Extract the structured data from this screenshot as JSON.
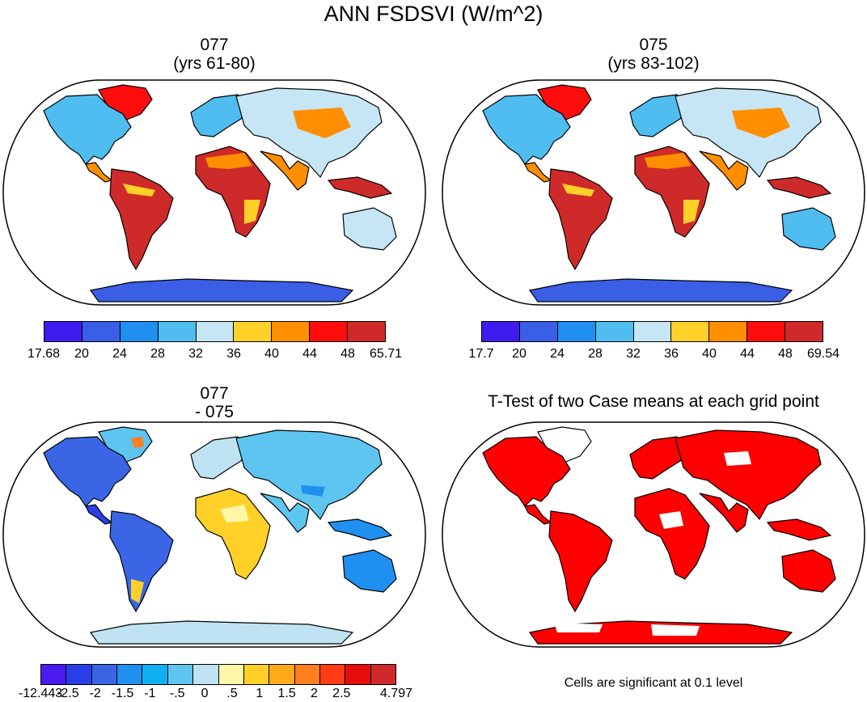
{
  "title": "ANN FSDSVI (W/m^2)",
  "panels": [
    {
      "id": "case1",
      "title_line1": "077",
      "title_line2": "(yrs 61-80)",
      "colors": [
        "#3f1bf0",
        "#3a5ee6",
        "#1f8ff0",
        "#4fbdf0",
        "#c6e6f5",
        "#ffd128",
        "#ff8f00",
        "#ff0d0d",
        "#cf2a2a"
      ],
      "tick_labels": [
        "17.68",
        "20",
        "24",
        "28",
        "32",
        "36",
        "40",
        "44",
        "48",
        "65.71"
      ]
    },
    {
      "id": "case2",
      "title_line1": "075",
      "title_line2": "(yrs 83-102)",
      "colors": [
        "#3f1bf0",
        "#3a5ee6",
        "#1f8ff0",
        "#4fbdf0",
        "#c6e6f5",
        "#ffd128",
        "#ff8f00",
        "#ff0d0d",
        "#cf2a2a"
      ],
      "tick_labels": [
        "17.7",
        "20",
        "24",
        "28",
        "32",
        "36",
        "40",
        "44",
        "48",
        "69.54"
      ]
    },
    {
      "id": "diff",
      "title_line1": "077",
      "title_line2": "- 075",
      "colors": [
        "#4a1cf0",
        "#2a3ee8",
        "#3a66e6",
        "#1f8ff0",
        "#0fb0f0",
        "#5ec4f0",
        "#bfe3f2",
        "#fff7a8",
        "#ffd128",
        "#ffab19",
        "#ff7f1e",
        "#ff3c14",
        "#e60d0d",
        "#cf2a2a"
      ],
      "tick_labels": [
        "-12.443",
        "-2.5",
        "-2",
        "-1.5",
        "-1",
        "-.5",
        "0",
        ".5",
        "1",
        "1.5",
        "2",
        "2.5",
        "",
        "4.797"
      ]
    },
    {
      "id": "ttest",
      "title": "T-Test of two Case means at each grid point",
      "note": "Cells are significant at 0.1 level",
      "sig_color": "#ff0000"
    }
  ]
}
